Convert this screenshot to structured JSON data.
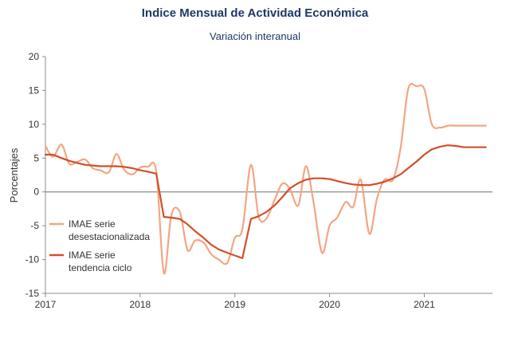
{
  "chart_data": {
    "type": "line",
    "title": "Indice Mensual de  Actividad Económica",
    "subtitle": "Variación interanual",
    "xlabel": "",
    "ylabel": "Porcentajes",
    "ylim": [
      -15,
      20
    ],
    "xlim": [
      2017,
      2021.72
    ],
    "yticks": [
      "20",
      "15",
      "10",
      "5",
      "0",
      "-5",
      "-10",
      "-15"
    ],
    "xticks": [
      "2017",
      "2018",
      "2019",
      "2020",
      "2021"
    ],
    "grid": false,
    "legend_position": "left-middle",
    "colors": {
      "desestacionalizada": "#f4a582",
      "tendencia": "#d0502a",
      "zero_line": "#8c8c8c",
      "title": "#1f3864"
    },
    "series": [
      {
        "name": "IMAE serie desestacionalizada",
        "legend_lines": [
          "IMAE serie",
          "desestacionalizada"
        ],
        "key": "desestacionalizada",
        "x": [
          2017.0,
          2017.08,
          2017.17,
          2017.25,
          2017.33,
          2017.42,
          2017.5,
          2017.58,
          2017.67,
          2017.75,
          2017.83,
          2017.92,
          2018.0,
          2018.08,
          2018.17,
          2018.25,
          2018.33,
          2018.42,
          2018.5,
          2018.58,
          2018.67,
          2018.75,
          2018.83,
          2018.92,
          2019.0,
          2019.08,
          2019.17,
          2019.25,
          2019.33,
          2019.42,
          2019.5,
          2019.58,
          2019.67,
          2019.75,
          2019.83,
          2019.92,
          2020.0,
          2020.08,
          2020.17,
          2020.25,
          2020.33,
          2020.42,
          2020.5,
          2020.58,
          2020.67,
          2020.75,
          2020.83,
          2020.92,
          2021.0,
          2021.08,
          2021.17,
          2021.25,
          2021.33,
          2021.42,
          2021.5,
          2021.58,
          2021.65
        ],
        "values": [
          6.8,
          5.2,
          7.0,
          4.2,
          4.4,
          4.8,
          3.5,
          3.2,
          2.9,
          5.6,
          3.3,
          2.6,
          3.6,
          3.7,
          3.0,
          -12.0,
          -3.4,
          -3.0,
          -8.6,
          -7.2,
          -7.5,
          -9.2,
          -10.0,
          -10.5,
          -6.8,
          -5.5,
          4.0,
          -3.6,
          -4.0,
          -1.2,
          1.2,
          0.5,
          -2.0,
          3.8,
          -1.5,
          -9.0,
          -5.0,
          -3.8,
          -1.5,
          -2.2,
          1.8,
          -6.2,
          -1.0,
          1.8,
          1.8,
          6.5,
          15.2,
          15.6,
          15.2,
          10.0,
          9.5,
          9.8,
          9.8,
          9.8,
          9.8,
          9.8,
          9.8
        ]
      },
      {
        "name": "IMAE serie tendencia ciclo",
        "legend_lines": [
          "IMAE serie",
          "tendencia ciclo"
        ],
        "key": "tendencia",
        "x": [
          2017.0,
          2017.08,
          2017.17,
          2017.25,
          2017.33,
          2017.42,
          2017.5,
          2017.58,
          2017.67,
          2017.75,
          2017.83,
          2017.92,
          2018.0,
          2018.08,
          2018.17,
          2018.25,
          2018.33,
          2018.42,
          2018.5,
          2018.58,
          2018.67,
          2018.75,
          2018.83,
          2018.92,
          2019.0,
          2019.08,
          2019.17,
          2019.25,
          2019.33,
          2019.42,
          2019.5,
          2019.58,
          2019.67,
          2019.75,
          2019.83,
          2019.92,
          2020.0,
          2020.08,
          2020.17,
          2020.25,
          2020.33,
          2020.42,
          2020.5,
          2020.58,
          2020.67,
          2020.75,
          2020.83,
          2020.92,
          2021.0,
          2021.08,
          2021.17,
          2021.25,
          2021.33,
          2021.42,
          2021.5,
          2021.58,
          2021.65
        ],
        "values": [
          5.5,
          5.5,
          5.0,
          4.6,
          4.3,
          4.0,
          3.9,
          3.8,
          3.8,
          3.8,
          3.7,
          3.5,
          3.2,
          3.0,
          2.7,
          -3.7,
          -3.8,
          -4.0,
          -4.8,
          -5.8,
          -6.8,
          -7.8,
          -8.5,
          -9.0,
          -9.4,
          -9.8,
          -4.0,
          -3.6,
          -3.0,
          -2.0,
          -0.8,
          0.5,
          1.3,
          1.8,
          2.0,
          2.0,
          1.9,
          1.6,
          1.3,
          1.1,
          1.0,
          1.0,
          1.2,
          1.5,
          2.0,
          2.6,
          3.5,
          4.5,
          5.5,
          6.3,
          6.7,
          6.9,
          6.8,
          6.6,
          6.6,
          6.6,
          6.6
        ]
      }
    ]
  }
}
